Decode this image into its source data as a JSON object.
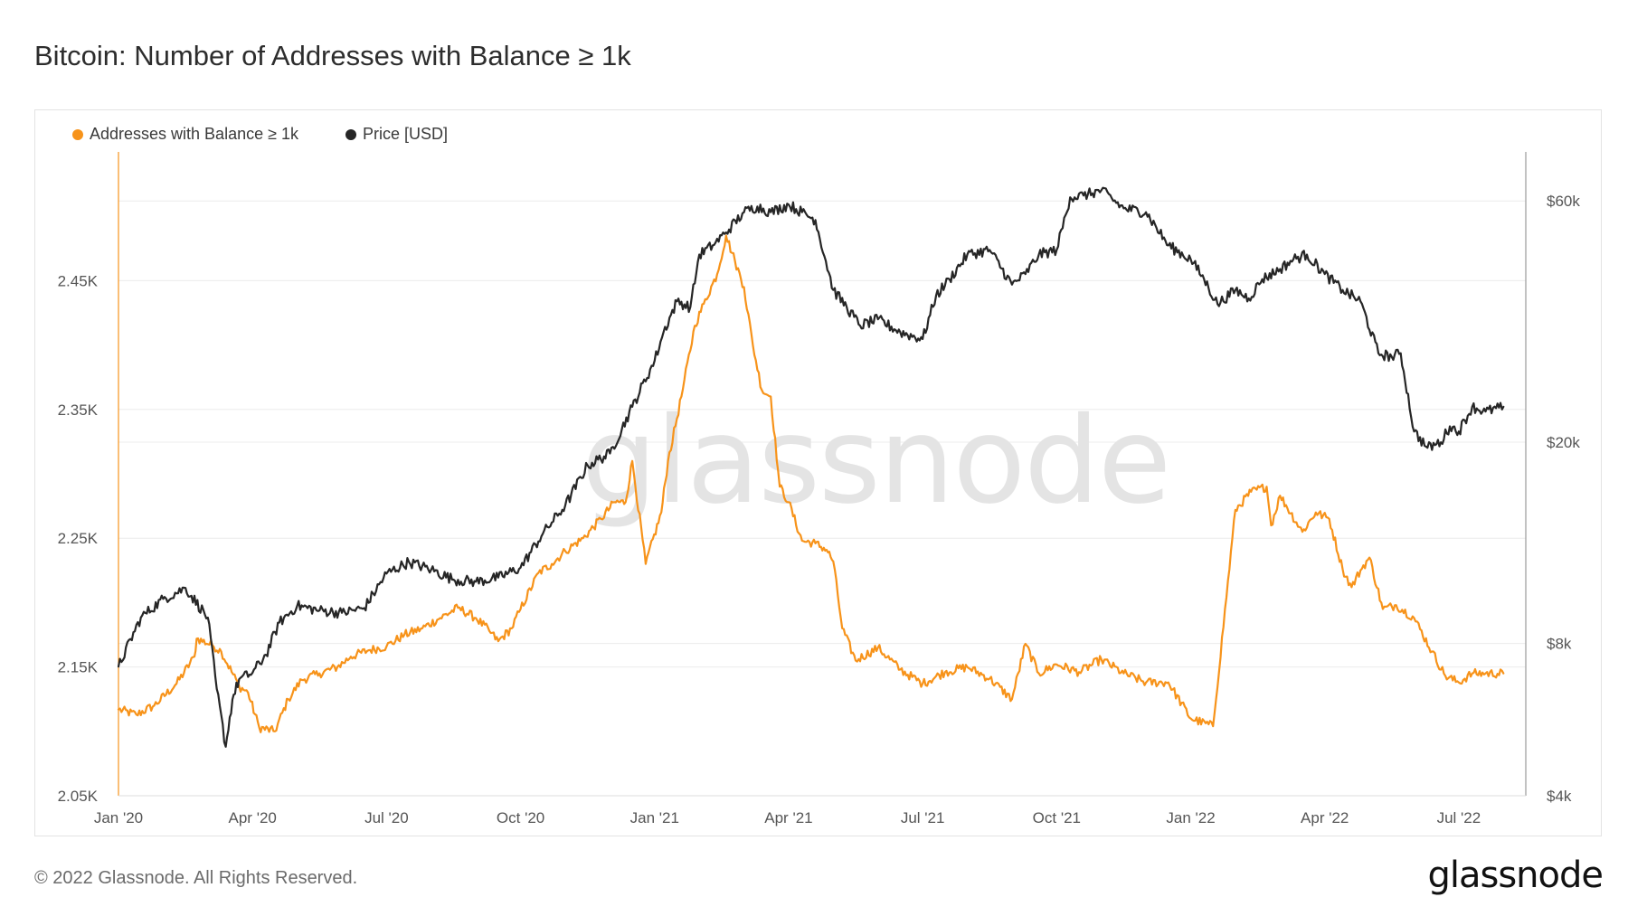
{
  "title": "Bitcoin: Number of Addresses with Balance ≥ 1k",
  "footer": "© 2022 Glassnode. All Rights Reserved.",
  "brand": "glassnode",
  "watermark": "glassnode",
  "colors": {
    "addresses": "#f7931a",
    "price": "#262626",
    "grid": "#ececec",
    "axis": "#9a9a9a"
  },
  "chart_data": {
    "type": "line",
    "title": "Bitcoin: Number of Addresses with Balance ≥ 1k",
    "legend_position": "top-left",
    "x_tick_labels": [
      "Jan '20",
      "Apr '20",
      "Jul '20",
      "Oct '20",
      "Jan '21",
      "Apr '21",
      "Jul '21",
      "Oct '21",
      "Jan '22",
      "Apr '22",
      "Jul '22"
    ],
    "x_ticks_month_index": [
      0,
      3,
      6,
      9,
      12,
      15,
      18,
      21,
      24,
      27,
      30
    ],
    "x_range_month_index": [
      0,
      31.5
    ],
    "left_axis": {
      "label": "",
      "ylim": [
        2050,
        2550
      ],
      "tick_values": [
        2050,
        2150,
        2250,
        2350,
        2450
      ],
      "tick_labels": [
        "2.05K",
        "2.15K",
        "2.25K",
        "2.35K",
        "2.45K"
      ]
    },
    "right_axis": {
      "label": "",
      "scale": "log",
      "ylim": [
        4000,
        75000
      ],
      "tick_values": [
        4000,
        8000,
        20000,
        60000
      ],
      "tick_labels": [
        "$4k",
        "$8k",
        "$20k",
        "$60k"
      ]
    },
    "series": [
      {
        "name": "Addresses with Balance ≥ 1k",
        "axis": "left",
        "x": [
          0,
          0.4,
          0.8,
          1.3,
          1.7,
          1.75,
          2.1,
          2.3,
          2.7,
          2.9,
          3.15,
          3.5,
          3.8,
          4.1,
          4.5,
          4.9,
          5.2,
          5.6,
          6.0,
          6.4,
          6.8,
          7.2,
          7.6,
          8.0,
          8.3,
          8.5,
          8.8,
          9.0,
          9.4,
          9.7,
          10.0,
          10.4,
          10.8,
          11.1,
          11.35,
          11.5,
          11.8,
          12.15,
          12.3,
          12.6,
          12.9,
          13.1,
          13.4,
          13.6,
          13.8,
          14.0,
          14.2,
          14.4,
          14.6,
          14.8,
          15.0,
          15.3,
          15.6,
          15.85,
          16.0,
          16.2,
          16.5,
          17.0,
          17.5,
          18.0,
          18.5,
          19.0,
          19.5,
          20.0,
          20.3,
          20.6,
          21.0,
          21.5,
          22.0,
          22.5,
          23.0,
          23.5,
          24.0,
          24.5,
          25.0,
          25.35,
          25.7,
          25.8,
          26.0,
          26.5,
          26.8,
          27.1,
          27.4,
          27.6,
          27.8,
          28.0,
          28.3,
          28.6,
          29.0,
          29.4,
          29.7,
          30.0,
          30.3,
          30.6,
          31.0
        ],
        "values": [
          2117,
          2113,
          2120,
          2137,
          2158,
          2172,
          2167,
          2162,
          2135,
          2130,
          2103,
          2100,
          2125,
          2140,
          2145,
          2150,
          2158,
          2163,
          2166,
          2175,
          2180,
          2188,
          2196,
          2188,
          2178,
          2170,
          2180,
          2195,
          2223,
          2230,
          2240,
          2250,
          2265,
          2278,
          2278,
          2310,
          2230,
          2270,
          2310,
          2360,
          2415,
          2432,
          2455,
          2485,
          2465,
          2445,
          2400,
          2365,
          2360,
          2290,
          2278,
          2248,
          2246,
          2241,
          2232,
          2180,
          2155,
          2165,
          2148,
          2137,
          2146,
          2150,
          2141,
          2125,
          2168,
          2145,
          2152,
          2146,
          2156,
          2145,
          2138,
          2138,
          2110,
          2104,
          2272,
          2286,
          2290,
          2260,
          2283,
          2255,
          2270,
          2265,
          2226,
          2212,
          2225,
          2235,
          2195,
          2198,
          2188,
          2162,
          2143,
          2138,
          2145,
          2145,
          2145
        ]
      },
      {
        "name": "Price [USD]",
        "axis": "right",
        "x": [
          0,
          0.5,
          1.0,
          1.5,
          2.0,
          2.2,
          2.4,
          2.55,
          2.7,
          3.0,
          3.3,
          3.6,
          4.0,
          4.5,
          5.0,
          5.5,
          6.0,
          6.5,
          7.0,
          7.5,
          8.0,
          8.5,
          9.0,
          9.5,
          10.0,
          10.5,
          11.0,
          11.5,
          12.0,
          12.2,
          12.5,
          12.8,
          13.0,
          13.3,
          13.6,
          14.0,
          14.3,
          14.6,
          15.0,
          15.3,
          15.6,
          16.0,
          16.3,
          16.6,
          17.0,
          17.5,
          18.0,
          18.3,
          18.6,
          19.0,
          19.5,
          20.0,
          20.3,
          20.6,
          21.0,
          21.3,
          21.6,
          22.0,
          22.5,
          23.0,
          23.5,
          24.0,
          24.3,
          24.6,
          25.0,
          25.3,
          25.6,
          26.0,
          26.3,
          26.6,
          27.0,
          27.4,
          27.8,
          28.2,
          28.5,
          28.7,
          29.0,
          29.3,
          29.6,
          29.8,
          30.0,
          30.3,
          30.6,
          31.0
        ],
        "values": [
          7200,
          9000,
          9800,
          10300,
          9000,
          6500,
          5000,
          6200,
          6800,
          7000,
          7600,
          8800,
          9500,
          9300,
          9200,
          9400,
          11000,
          11600,
          11200,
          10700,
          10600,
          10800,
          11300,
          13200,
          15000,
          18000,
          19000,
          23500,
          29000,
          33000,
          38000,
          37000,
          47000,
          49000,
          52000,
          57000,
          58500,
          57000,
          59000,
          57000,
          55000,
          40000,
          37000,
          34000,
          35000,
          33000,
          32000,
          39000,
          42000,
          47000,
          48000,
          41000,
          43000,
          47000,
          48000,
          61000,
          61500,
          63000,
          58000,
          57000,
          49000,
          46000,
          42000,
          37500,
          40000,
          38500,
          42000,
          44000,
          46000,
          47000,
          43000,
          40000,
          38000,
          30000,
          29500,
          30000,
          21000,
          19500,
          20000,
          21500,
          21000,
          23500,
          23000,
          23500
        ]
      }
    ]
  }
}
